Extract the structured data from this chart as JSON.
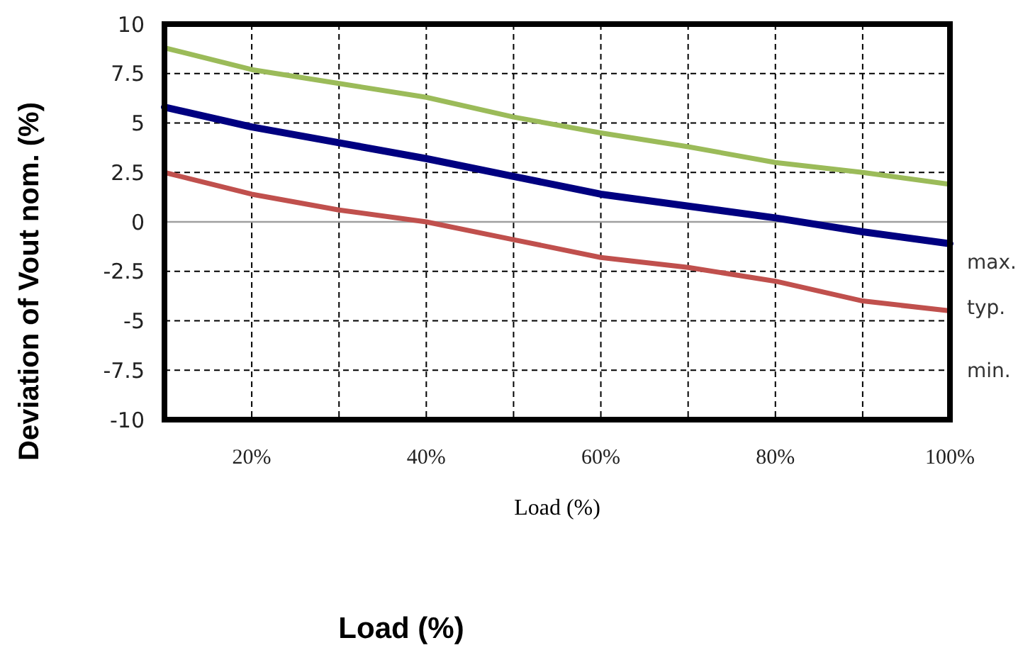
{
  "chart_data": {
    "type": "line",
    "ylabel": "Deviation of Vout nom. (%)",
    "xlabel": "Load (%)",
    "annotations": [
      "Load (%)"
    ],
    "x": [
      10,
      20,
      30,
      40,
      50,
      60,
      70,
      80,
      90,
      100
    ],
    "xlim": [
      10,
      100
    ],
    "xticks": [
      {
        "value": 20,
        "label": "20%"
      },
      {
        "value": 30,
        "label": null
      },
      {
        "value": 40,
        "label": "40%"
      },
      {
        "value": 50,
        "label": null
      },
      {
        "value": 60,
        "label": "60%"
      },
      {
        "value": 70,
        "label": null
      },
      {
        "value": 80,
        "label": "80%"
      },
      {
        "value": 90,
        "label": null
      },
      {
        "value": 100,
        "label": "100%"
      }
    ],
    "ylim": [
      -10,
      10
    ],
    "yticks": [
      -10,
      -7.5,
      -5,
      -2.5,
      0,
      2.5,
      5,
      7.5,
      10
    ],
    "grid": true,
    "marker": "none",
    "line_style": "solid",
    "ref_lines": [
      {
        "axis": "y",
        "value": 0,
        "label": null,
        "color": "#a0a0a0"
      }
    ],
    "series": [
      {
        "name": "max.",
        "color": "#9bbb59",
        "values": [
          8.8,
          7.7,
          7.0,
          6.3,
          5.3,
          4.5,
          3.8,
          3.0,
          2.5,
          1.9
        ]
      },
      {
        "name": "typ.",
        "color": "#000080",
        "values": [
          5.8,
          4.8,
          4.0,
          3.2,
          2.3,
          1.4,
          0.8,
          0.2,
          -0.5,
          -1.1
        ]
      },
      {
        "name": "min.",
        "color": "#c0504d",
        "values": [
          2.5,
          1.4,
          0.6,
          0.0,
          -0.9,
          -1.8,
          -2.3,
          -3.0,
          -4.0,
          -4.5
        ]
      }
    ]
  }
}
